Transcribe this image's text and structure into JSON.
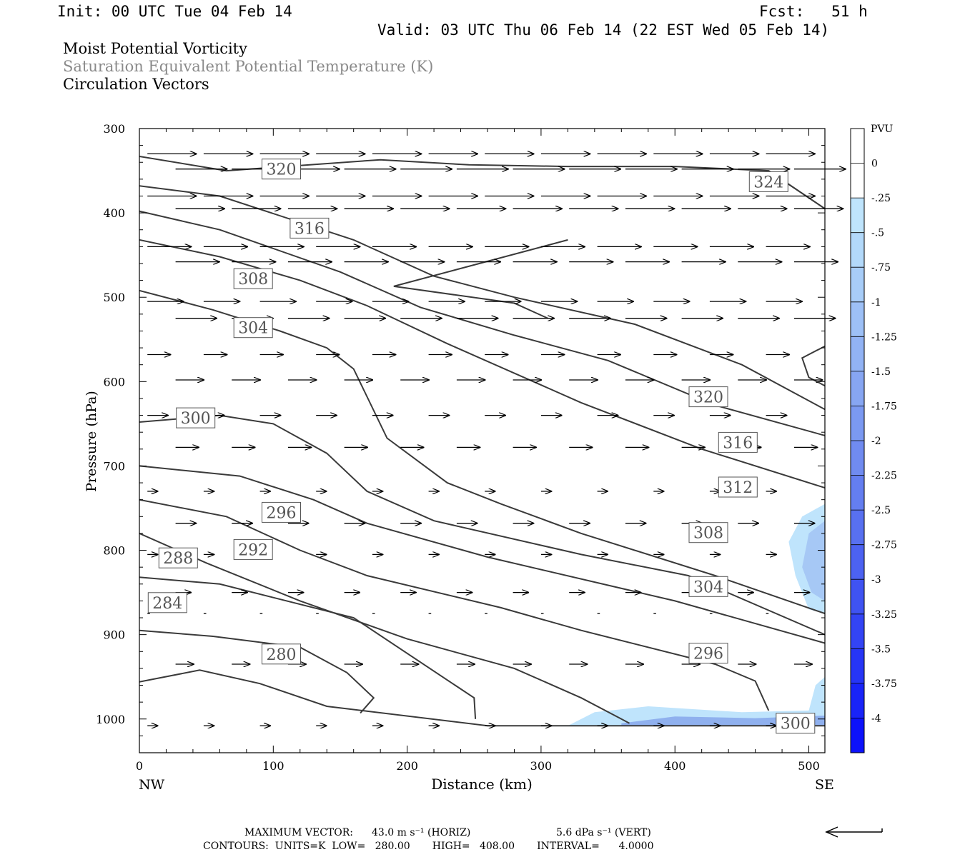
{
  "header": {
    "init": "Init: 00 UTC Tue 04 Feb 14",
    "fcst": "Fcst:   51 h",
    "valid": "Valid: 03 UTC Thu 06 Feb 14 (22 EST Wed 05 Feb 14)"
  },
  "titles": {
    "line1": "Moist Potential Vorticity",
    "line2": "Saturation Equivalent Potential Temperature (K)",
    "line3": "Circulation Vectors"
  },
  "footer": {
    "max_vector_label": "MAXIMUM VECTOR:",
    "horiz": "43.0 m s⁻¹ (HORIZ)",
    "vert": "5.6 dPa s⁻¹ (VERT)",
    "contours": "CONTOURS:  UNITS=K  LOW=   280.00       HIGH=   408.00       INTERVAL=      4.0000"
  },
  "colors": {
    "contour": "#3a3a3a",
    "mpv_light": "#bfe4fc",
    "mpv_mid": "#a6c8f5",
    "mpv_dark": "#8fb0ee"
  },
  "chart_data": {
    "type": "contour",
    "xlabel": "Distance (km)",
    "ylabel": "Pressure (hPa)",
    "x_left_label": "NW",
    "x_right_label": "SE",
    "xlim": [
      0,
      512
    ],
    "ylim": [
      300,
      1040
    ],
    "y_reversed": true,
    "x_ticks": [
      0,
      100,
      200,
      300,
      400,
      500
    ],
    "y_ticks": [
      300,
      400,
      500,
      600,
      700,
      800,
      900,
      1000
    ],
    "colorbar": {
      "units": "PVU",
      "labels": [
        "0",
        "-.25",
        "-.5",
        "-.75",
        "-1",
        "-1.25",
        "-1.5",
        "-1.75",
        "-2",
        "-2.25",
        "-2.5",
        "-2.75",
        "-3",
        "-3.25",
        "-3.5",
        "-3.75",
        "-4"
      ],
      "colors": [
        "#ffffff",
        "#ffffff",
        "#bfe4fc",
        "#b3d9fa",
        "#a8cdf8",
        "#9dc0f6",
        "#92b3f4",
        "#87a6f2",
        "#7b99f1",
        "#708bf0",
        "#647ef0",
        "#5870f0",
        "#4c62f1",
        "#3f53f2",
        "#3344f4",
        "#2635f6",
        "#1924f8",
        "#0c12fb"
      ]
    },
    "contour_labels": [
      {
        "label": "320",
        "x": 106,
        "p": 348
      },
      {
        "label": "324",
        "x": 470,
        "p": 363
      },
      {
        "label": "316",
        "x": 127,
        "p": 418
      },
      {
        "label": "308",
        "x": 85,
        "p": 478
      },
      {
        "label": "304",
        "x": 85,
        "p": 536
      },
      {
        "label": "320",
        "x": 425,
        "p": 618
      },
      {
        "label": "300",
        "x": 42,
        "p": 643
      },
      {
        "label": "316",
        "x": 447,
        "p": 672
      },
      {
        "label": "312",
        "x": 447,
        "p": 725
      },
      {
        "label": "296",
        "x": 106,
        "p": 755
      },
      {
        "label": "308",
        "x": 425,
        "p": 779
      },
      {
        "label": "288",
        "x": 29,
        "p": 809
      },
      {
        "label": "292",
        "x": 85,
        "p": 799
      },
      {
        "label": "304",
        "x": 425,
        "p": 843
      },
      {
        "label": "284",
        "x": 21,
        "p": 862
      },
      {
        "label": "280",
        "x": 106,
        "p": 923
      },
      {
        "label": "296",
        "x": 425,
        "p": 922
      },
      {
        "label": "300",
        "x": 490,
        "p": 1005
      }
    ],
    "contour_lines": [
      [
        [
          0,
          333
        ],
        [
          65,
          350
        ],
        [
          180,
          337
        ],
        [
          246,
          343
        ],
        [
          320,
          345
        ],
        [
          400,
          345
        ],
        [
          470,
          350
        ],
        [
          512,
          395
        ]
      ],
      [
        [
          0,
          368
        ],
        [
          60,
          380
        ],
        [
          160,
          432
        ],
        [
          220,
          475
        ],
        [
          280,
          500
        ],
        [
          370,
          532
        ],
        [
          450,
          580
        ],
        [
          512,
          633
        ]
      ],
      [
        [
          0,
          398
        ],
        [
          60,
          420
        ],
        [
          150,
          470
        ],
        [
          210,
          512
        ],
        [
          280,
          545
        ],
        [
          350,
          575
        ],
        [
          430,
          628
        ],
        [
          512,
          664
        ]
      ],
      [
        [
          0,
          432
        ],
        [
          60,
          452
        ],
        [
          120,
          480
        ],
        [
          170,
          510
        ],
        [
          230,
          555
        ],
        [
          330,
          625
        ],
        [
          420,
          680
        ],
        [
          512,
          726
        ]
      ],
      [
        [
          0,
          492
        ],
        [
          55,
          515
        ],
        [
          105,
          540
        ],
        [
          140,
          560
        ],
        [
          160,
          585
        ],
        [
          185,
          667
        ],
        [
          230,
          720
        ],
        [
          270,
          745
        ],
        [
          330,
          780
        ],
        [
          430,
          830
        ],
        [
          512,
          875
        ]
      ],
      [
        [
          0,
          648
        ],
        [
          60,
          640
        ],
        [
          100,
          650
        ],
        [
          140,
          685
        ],
        [
          170,
          730
        ],
        [
          220,
          765
        ],
        [
          330,
          805
        ],
        [
          410,
          830
        ],
        [
          512,
          900
        ]
      ],
      [
        [
          0,
          700
        ],
        [
          75,
          712
        ],
        [
          130,
          740
        ],
        [
          170,
          768
        ],
        [
          260,
          808
        ],
        [
          400,
          860
        ],
        [
          512,
          910
        ]
      ],
      [
        [
          0,
          740
        ],
        [
          65,
          760
        ],
        [
          120,
          800
        ],
        [
          170,
          830
        ],
        [
          270,
          868
        ],
        [
          330,
          895
        ],
        [
          430,
          935
        ],
        [
          460,
          955
        ],
        [
          470,
          990
        ]
      ],
      [
        [
          0,
          780
        ],
        [
          50,
          815
        ],
        [
          120,
          860
        ],
        [
          200,
          905
        ],
        [
          280,
          940
        ],
        [
          330,
          975
        ],
        [
          360,
          1000
        ],
        [
          366,
          1005
        ]
      ],
      [
        [
          0,
          832
        ],
        [
          60,
          840
        ],
        [
          160,
          880
        ],
        [
          250,
          975
        ],
        [
          251,
          1000
        ]
      ],
      [
        [
          0,
          895
        ],
        [
          55,
          902
        ],
        [
          120,
          915
        ],
        [
          155,
          945
        ],
        [
          175,
          975
        ],
        [
          165,
          993
        ]
      ],
      [
        [
          0,
          956
        ],
        [
          45,
          942
        ],
        [
          90,
          958
        ],
        [
          140,
          985
        ],
        [
          260,
          1008
        ],
        [
          512,
          1008
        ]
      ],
      [
        [
          320,
          432
        ],
        [
          190,
          487
        ],
        [
          280,
          507
        ],
        [
          305,
          525
        ]
      ],
      [
        [
          512,
          395
        ],
        [
          470,
          350
        ]
      ],
      [
        [
          512,
          558
        ],
        [
          495,
          572
        ],
        [
          500,
          595
        ],
        [
          512,
          605
        ]
      ]
    ],
    "mpv_regions": [
      {
        "pvu": -0.25,
        "polygon": [
          [
            320,
            1008
          ],
          [
            340,
            992
          ],
          [
            380,
            985
          ],
          [
            450,
            992
          ],
          [
            500,
            990
          ],
          [
            505,
            960
          ],
          [
            512,
            950
          ],
          [
            512,
            1008
          ]
        ]
      },
      {
        "pvu": -0.25,
        "polygon": [
          [
            512,
            745
          ],
          [
            495,
            760
          ],
          [
            485,
            790
          ],
          [
            490,
            830
          ],
          [
            500,
            870
          ],
          [
            512,
            875
          ]
        ]
      },
      {
        "pvu": -0.5,
        "polygon": [
          [
            500,
            780
          ],
          [
            495,
            820
          ],
          [
            502,
            850
          ],
          [
            512,
            860
          ],
          [
            512,
            765
          ]
        ]
      },
      {
        "pvu": -0.75,
        "polygon": [
          [
            360,
            1005
          ],
          [
            400,
            997
          ],
          [
            460,
            999
          ],
          [
            512,
            996
          ],
          [
            512,
            1008
          ],
          [
            360,
            1008
          ]
        ]
      }
    ],
    "vector_rows": [
      {
        "p": 330,
        "u": 0.95,
        "w": 0.0
      },
      {
        "p": 348,
        "u": 1.0,
        "w": 0.0
      },
      {
        "p": 380,
        "u": 0.95,
        "w": 0.0
      },
      {
        "p": 395,
        "u": 0.95,
        "w": 0.0
      },
      {
        "p": 440,
        "u": 0.85,
        "w": 0.0
      },
      {
        "p": 458,
        "u": 0.85,
        "w": 0.0
      },
      {
        "p": 505,
        "u": 0.7,
        "w": 0.0
      },
      {
        "p": 525,
        "u": 0.8,
        "w": 0.0
      },
      {
        "p": 568,
        "u": 0.45,
        "w": 0.0
      },
      {
        "p": 598,
        "u": 0.55,
        "w": 0.0
      },
      {
        "p": 640,
        "u": 0.4,
        "w": 0.0
      },
      {
        "p": 678,
        "u": 0.45,
        "w": 0.0
      },
      {
        "p": 730,
        "u": 0.2,
        "w": 0.0
      },
      {
        "p": 768,
        "u": 0.4,
        "w": 0.0
      },
      {
        "p": 805,
        "u": 0.2,
        "w": 0.0
      },
      {
        "p": 850,
        "u": 0.3,
        "w": 0.0
      },
      {
        "p": 875,
        "u": 0.05,
        "w": 0.0
      },
      {
        "p": 935,
        "u": 0.35,
        "w": 0.0
      },
      {
        "p": 1008,
        "u": 0.2,
        "w": 0.0
      }
    ]
  }
}
